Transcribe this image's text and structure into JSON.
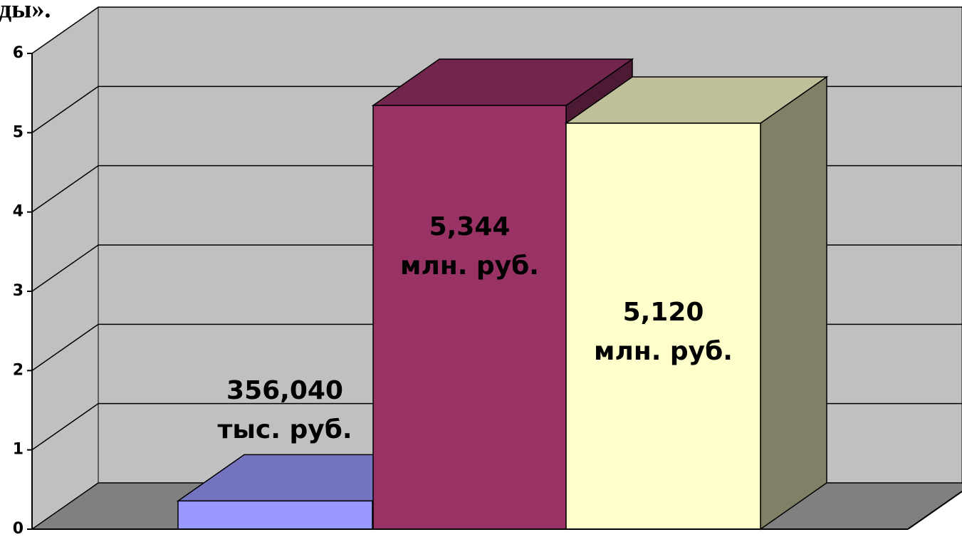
{
  "chart_data": {
    "type": "bar3d",
    "title": "ды».",
    "values": [
      0.35604,
      5.344,
      5.12
    ],
    "value_labels": [
      [
        "356,040",
        "тыс. руб."
      ],
      [
        "5,344",
        "млн. руб."
      ],
      [
        "5,120",
        "млн. руб."
      ]
    ],
    "colors": [
      "#9999ff",
      "#993366",
      "#ffffcc"
    ],
    "ylim": [
      0,
      6
    ],
    "yticks": [
      0,
      1,
      2,
      3,
      4,
      5,
      6
    ],
    "grid": true
  }
}
